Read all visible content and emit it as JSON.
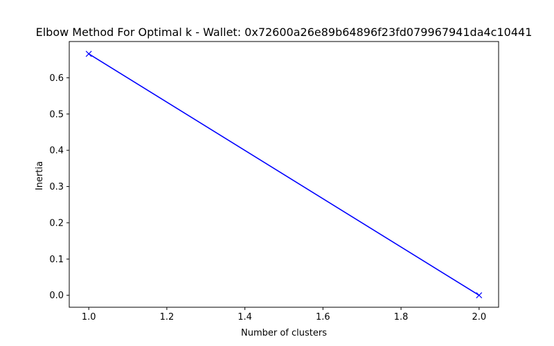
{
  "chart_data": {
    "type": "line",
    "title": "Elbow Method For Optimal k - Wallet: 0x72600a26e89b64896f23fd079967941da4c10441",
    "xlabel": "Number of clusters",
    "ylabel": "Inertia",
    "xlim": [
      0.95,
      2.05
    ],
    "ylim": [
      -0.033,
      0.7
    ],
    "xticks": [
      1.0,
      1.2,
      1.4,
      1.6,
      1.8,
      2.0
    ],
    "xtick_labels": [
      "1.0",
      "1.2",
      "1.4",
      "1.6",
      "1.8",
      "2.0"
    ],
    "yticks": [
      0.0,
      0.1,
      0.2,
      0.3,
      0.4,
      0.5,
      0.6
    ],
    "ytick_labels": [
      "0.0",
      "0.1",
      "0.2",
      "0.3",
      "0.4",
      "0.5",
      "0.6"
    ],
    "grid": false,
    "legend": false,
    "series": [
      {
        "x": [
          1,
          2
        ],
        "y": [
          0.666,
          0.0
        ],
        "color": "#0000ff",
        "marker": "x"
      }
    ]
  }
}
